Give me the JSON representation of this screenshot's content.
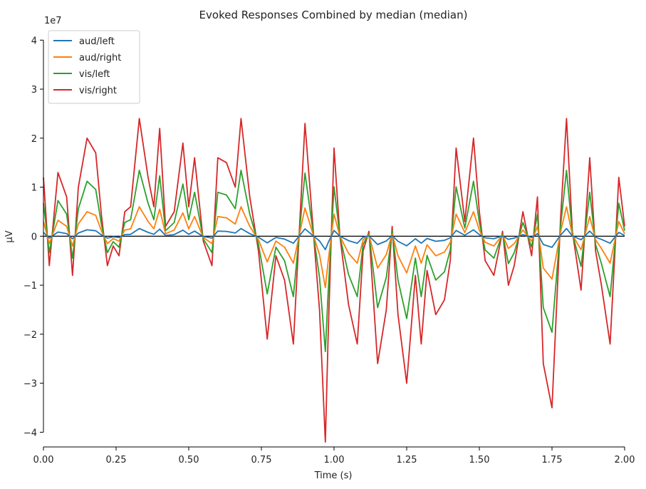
{
  "chart_data": {
    "type": "line",
    "title": "Evoked Responses Combined by median (median)",
    "xlabel": "Time (s)",
    "ylabel": "µV",
    "y_scale_label": "1e7",
    "xlim": [
      0.0,
      2.0
    ],
    "ylim": [
      -4.3,
      4.15
    ],
    "x_ticks": [
      0.0,
      0.25,
      0.5,
      0.75,
      1.0,
      1.25,
      1.5,
      1.75,
      2.0
    ],
    "x_tick_labels": [
      "0.00",
      "0.25",
      "0.50",
      "0.75",
      "1.00",
      "1.25",
      "1.50",
      "1.75",
      "2.00"
    ],
    "y_ticks": [
      -4,
      -3,
      -2,
      -1,
      0,
      1,
      2,
      3,
      4
    ],
    "y_tick_labels": [
      "−4",
      "−3",
      "−2",
      "−1",
      "0",
      "1",
      "2",
      "3",
      "4"
    ],
    "grid": false,
    "legend_position": "top-left",
    "zero_line": true,
    "x": [
      0.0,
      0.02,
      0.05,
      0.08,
      0.1,
      0.12,
      0.15,
      0.18,
      0.2,
      0.22,
      0.24,
      0.26,
      0.28,
      0.3,
      0.33,
      0.36,
      0.38,
      0.4,
      0.42,
      0.45,
      0.48,
      0.5,
      0.52,
      0.55,
      0.58,
      0.6,
      0.63,
      0.66,
      0.68,
      0.71,
      0.74,
      0.77,
      0.8,
      0.83,
      0.86,
      0.9,
      0.93,
      0.95,
      0.97,
      0.98,
      1.0,
      1.02,
      1.05,
      1.08,
      1.1,
      1.12,
      1.15,
      1.18,
      1.2,
      1.22,
      1.25,
      1.28,
      1.3,
      1.32,
      1.35,
      1.38,
      1.4,
      1.42,
      1.45,
      1.48,
      1.5,
      1.52,
      1.55,
      1.58,
      1.6,
      1.62,
      1.65,
      1.68,
      1.7,
      1.72,
      1.75,
      1.78,
      1.8,
      1.82,
      1.85,
      1.88,
      1.9,
      1.92,
      1.95,
      1.98,
      2.0
    ],
    "series": [
      {
        "name": "aud/left",
        "color": "#1f77b4",
        "scale": 0.065
      },
      {
        "name": "aud/right",
        "color": "#ff7f0e",
        "scale": 0.25
      },
      {
        "name": "vis/left",
        "color": "#2ca02c",
        "scale": 0.56
      },
      {
        "name": "vis/right",
        "color": "#d62728",
        "scale": 1.0
      }
    ],
    "base_curve": [
      1.2,
      -0.6,
      1.3,
      0.8,
      -0.8,
      1.0,
      2.0,
      1.7,
      0.4,
      -0.6,
      -0.2,
      -0.4,
      0.5,
      0.6,
      2.4,
      1.2,
      0.6,
      2.2,
      0.2,
      0.5,
      1.9,
      0.6,
      1.6,
      -0.1,
      -0.6,
      1.6,
      1.5,
      1.0,
      2.4,
      0.8,
      -0.3,
      -2.1,
      -0.4,
      -0.9,
      -2.2,
      2.3,
      0.0,
      -1.5,
      -4.2,
      -2.0,
      1.8,
      0.0,
      -1.4,
      -2.2,
      -0.3,
      0.1,
      -2.6,
      -1.5,
      0.2,
      -1.6,
      -3.0,
      -0.8,
      -2.2,
      -0.7,
      -1.6,
      -1.3,
      -0.5,
      1.8,
      0.3,
      2.0,
      0.5,
      -0.5,
      -0.8,
      0.1,
      -1.0,
      -0.6,
      0.5,
      -0.4,
      0.8,
      -2.6,
      -3.5,
      0.4,
      2.4,
      0.1,
      -1.1,
      1.6,
      -0.3,
      -1.0,
      -2.2,
      1.2,
      0.2
    ]
  },
  "legend": [
    {
      "label": "aud/left",
      "color": "#1f77b4"
    },
    {
      "label": "aud/right",
      "color": "#ff7f0e"
    },
    {
      "label": "vis/left",
      "color": "#2ca02c"
    },
    {
      "label": "vis/right",
      "color": "#d62728"
    }
  ]
}
